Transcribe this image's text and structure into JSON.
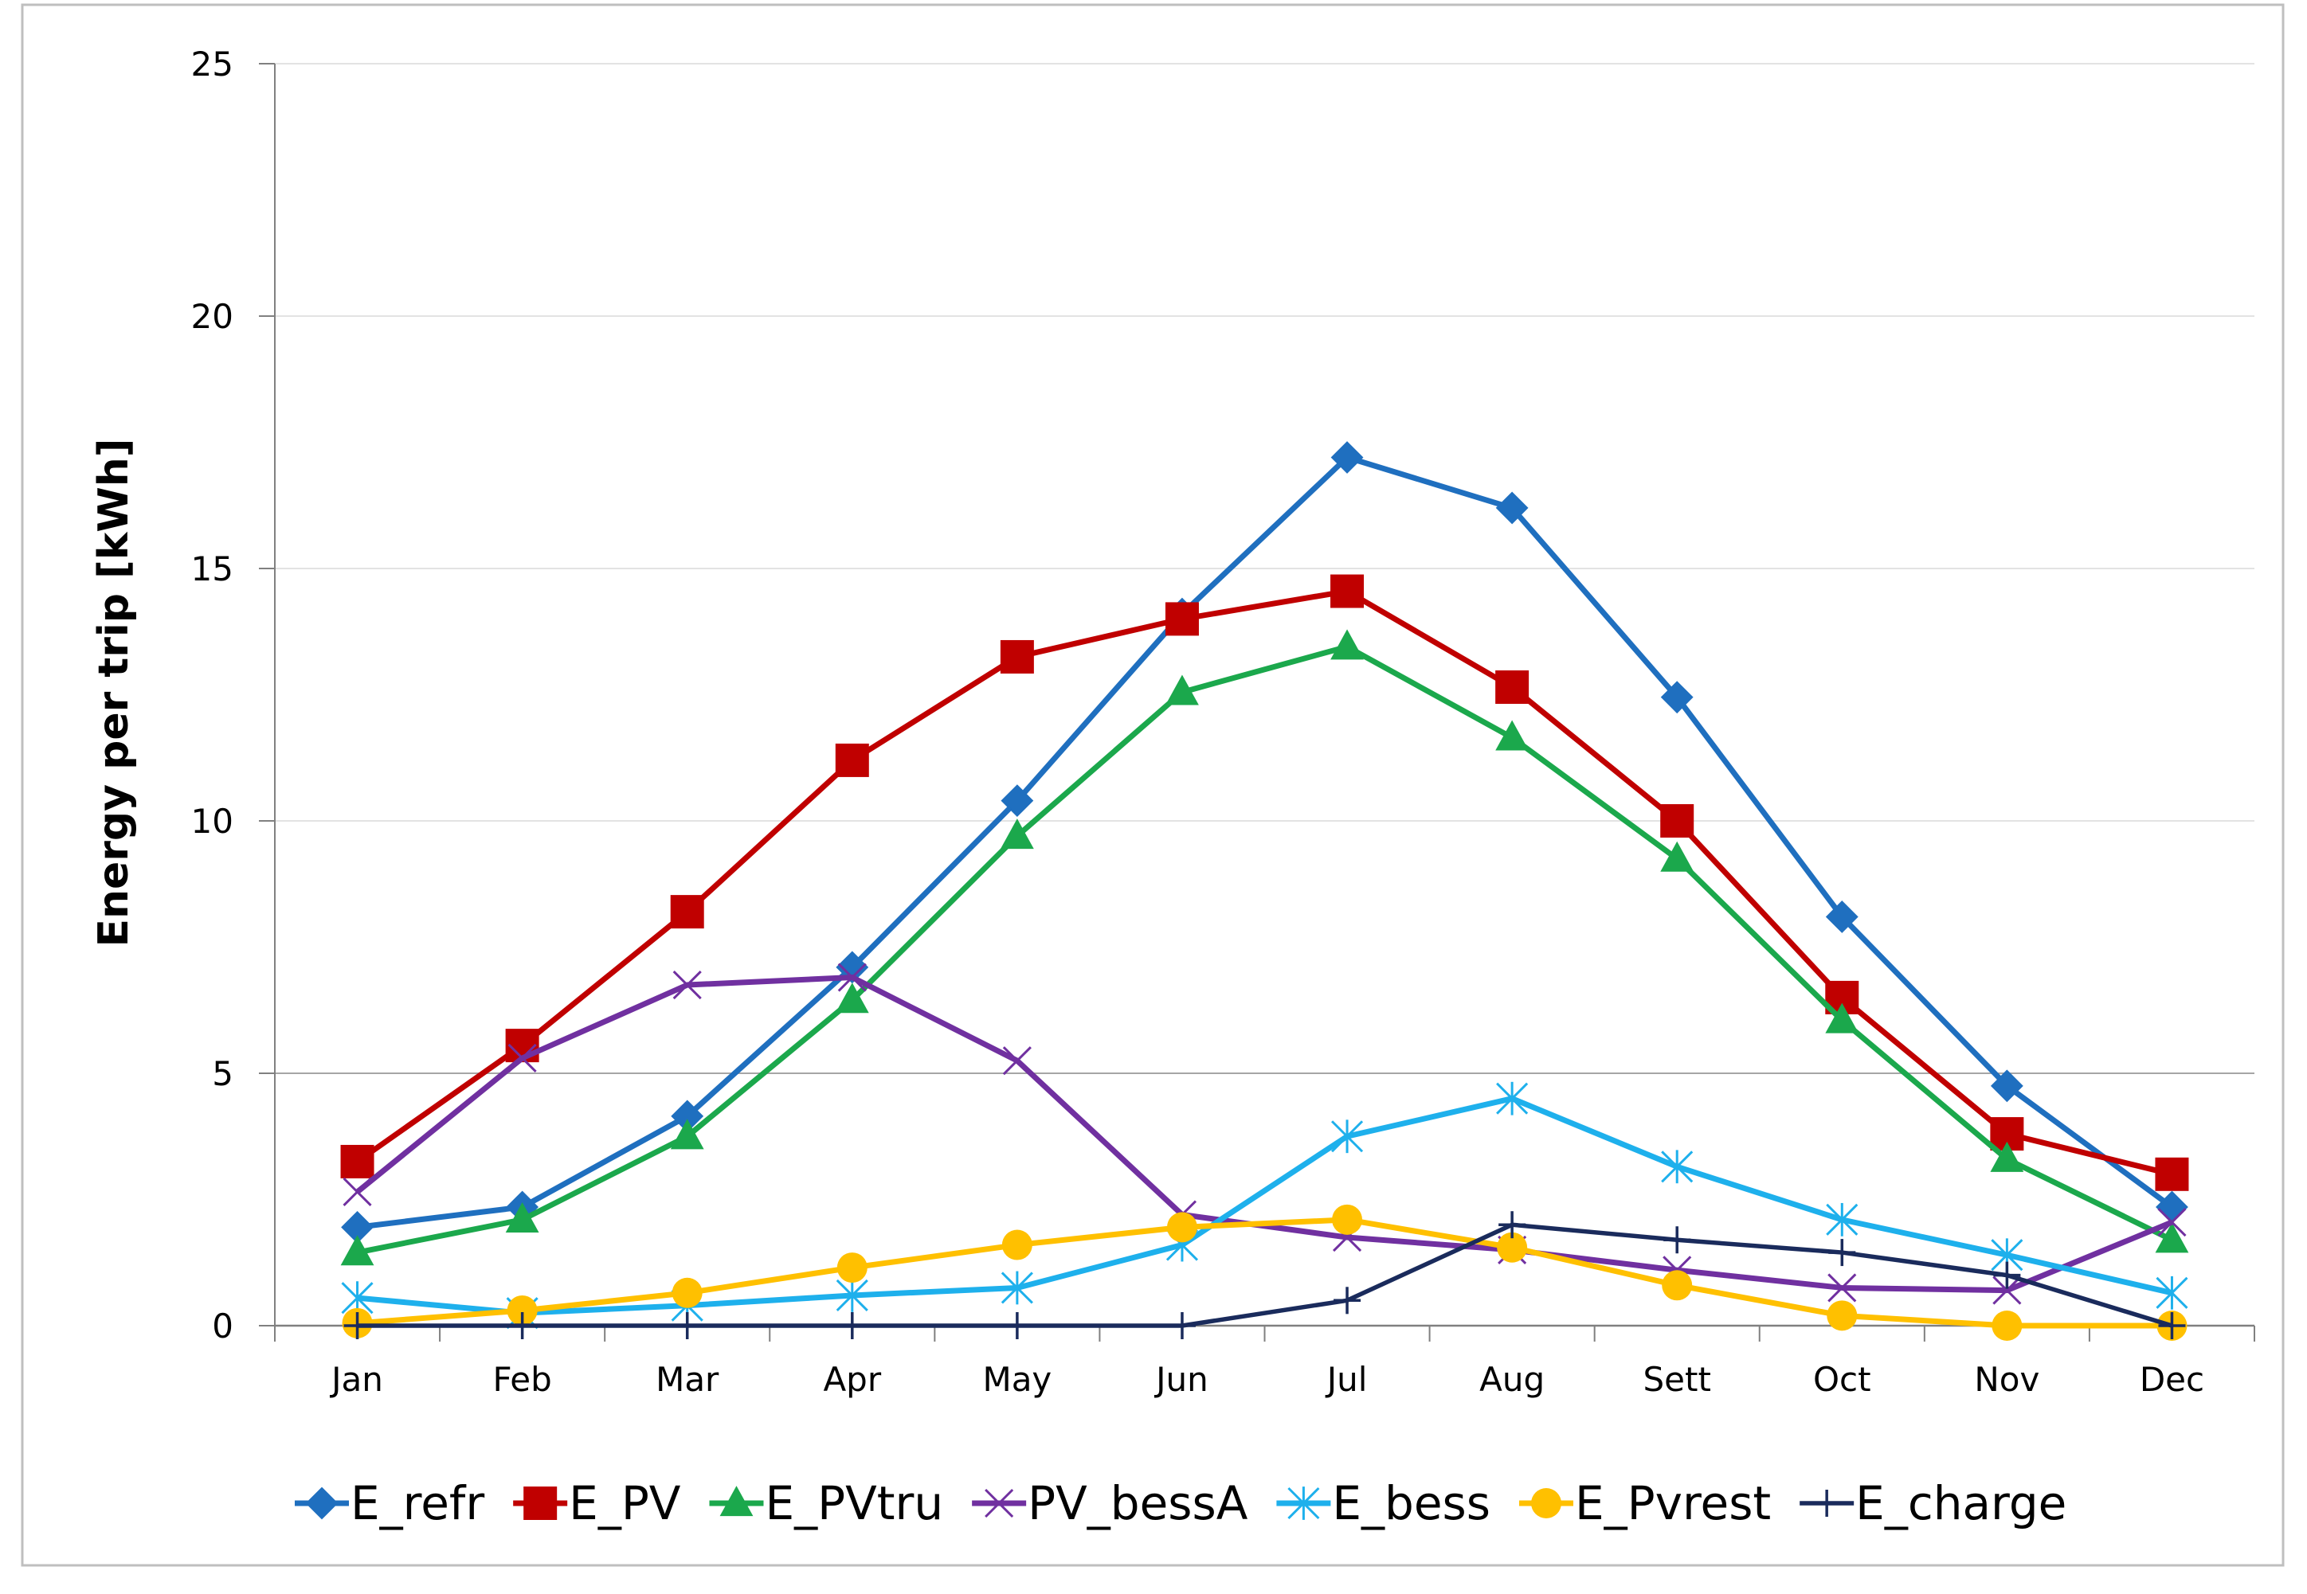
{
  "chart_data": {
    "type": "line",
    "title": "",
    "xlabel": "",
    "ylabel": "Energy  per trip [kWh]",
    "ylim": [
      0,
      25
    ],
    "yticks": [
      0,
      5,
      10,
      15,
      20,
      25
    ],
    "grid": "horizontal",
    "legend_position": "bottom",
    "categories": [
      "Jan",
      "Feb",
      "Mar",
      "Apr",
      "May",
      "Jun",
      "Jul",
      "Aug",
      "Sett",
      "Oct",
      "Nov",
      "Dec"
    ],
    "series": [
      {
        "name": "E_refr",
        "color": "#1F6FBF",
        "marker": "diamond",
        "values": [
          1.95,
          2.35,
          4.15,
          7.1,
          10.4,
          14.1,
          17.2,
          16.2,
          12.45,
          8.1,
          4.75,
          2.35
        ]
      },
      {
        "name": "E_PV",
        "color": "#C00000",
        "marker": "square",
        "values": [
          3.25,
          5.55,
          8.2,
          11.2,
          13.25,
          14.0,
          14.55,
          12.65,
          10.0,
          6.5,
          3.8,
          3.0
        ]
      },
      {
        "name": "E_PVtru",
        "color": "#1BA84C",
        "marker": "triangle",
        "values": [
          1.45,
          2.1,
          3.75,
          6.45,
          9.7,
          12.55,
          13.45,
          11.65,
          9.25,
          6.05,
          3.3,
          1.7
        ]
      },
      {
        "name": "PV_bessA",
        "color": "#7030A0",
        "marker": "x",
        "values": [
          2.65,
          5.3,
          6.75,
          6.9,
          5.25,
          2.2,
          1.75,
          1.5,
          1.1,
          0.75,
          0.7,
          2.05
        ]
      },
      {
        "name": "E_bess",
        "color": "#1EB0EC",
        "marker": "asterisk",
        "values": [
          0.55,
          0.25,
          0.4,
          0.6,
          0.75,
          1.6,
          3.75,
          4.5,
          3.15,
          2.1,
          1.4,
          0.65
        ]
      },
      {
        "name": "E_Pvrest",
        "color": "#FFC000",
        "marker": "circle",
        "values": [
          0.05,
          0.3,
          0.65,
          1.15,
          1.6,
          1.95,
          2.1,
          1.55,
          0.8,
          0.2,
          0.0,
          0.0
        ]
      },
      {
        "name": "E_charge",
        "color": "#1A2B5C",
        "marker": "plus",
        "values": [
          0.0,
          0.0,
          0.0,
          0.0,
          0.0,
          0.0,
          0.5,
          2.0,
          1.7,
          1.45,
          1.0,
          0.0
        ]
      }
    ]
  }
}
